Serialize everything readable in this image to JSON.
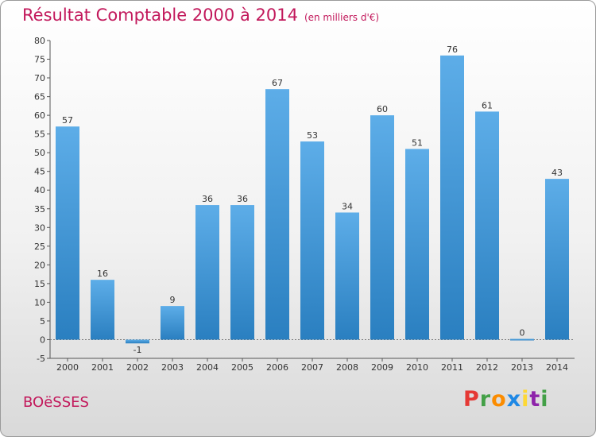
{
  "title": "Résultat Comptable 2000 à 2014",
  "subtitle": "(en milliers d'€)",
  "commune": "BOëSSES",
  "logo": {
    "letters": [
      "P",
      "r",
      "o",
      "x",
      "i",
      "t",
      "i"
    ],
    "colors": [
      "#e53935",
      "#43a047",
      "#fb8c00",
      "#1e88e5",
      "#fdd835",
      "#8e24aa",
      "#43a047"
    ]
  },
  "colors": {
    "title": "#c2185b",
    "bar_top": "#5dade8",
    "bar_bottom": "#2a7fc0"
  },
  "chart_data": {
    "type": "bar",
    "categories": [
      "2000",
      "2001",
      "2002",
      "2003",
      "2004",
      "2005",
      "2006",
      "2007",
      "2008",
      "2009",
      "2010",
      "2011",
      "2012",
      "2013",
      "2014"
    ],
    "values": [
      57,
      16,
      -1,
      9,
      36,
      36,
      67,
      53,
      34,
      60,
      51,
      76,
      61,
      0,
      43
    ],
    "ylim": [
      -5,
      80
    ],
    "yticks": [
      -5,
      0,
      5,
      10,
      15,
      20,
      25,
      30,
      35,
      40,
      45,
      50,
      55,
      60,
      65,
      70,
      75,
      80
    ],
    "grid": false,
    "legend": "none"
  }
}
